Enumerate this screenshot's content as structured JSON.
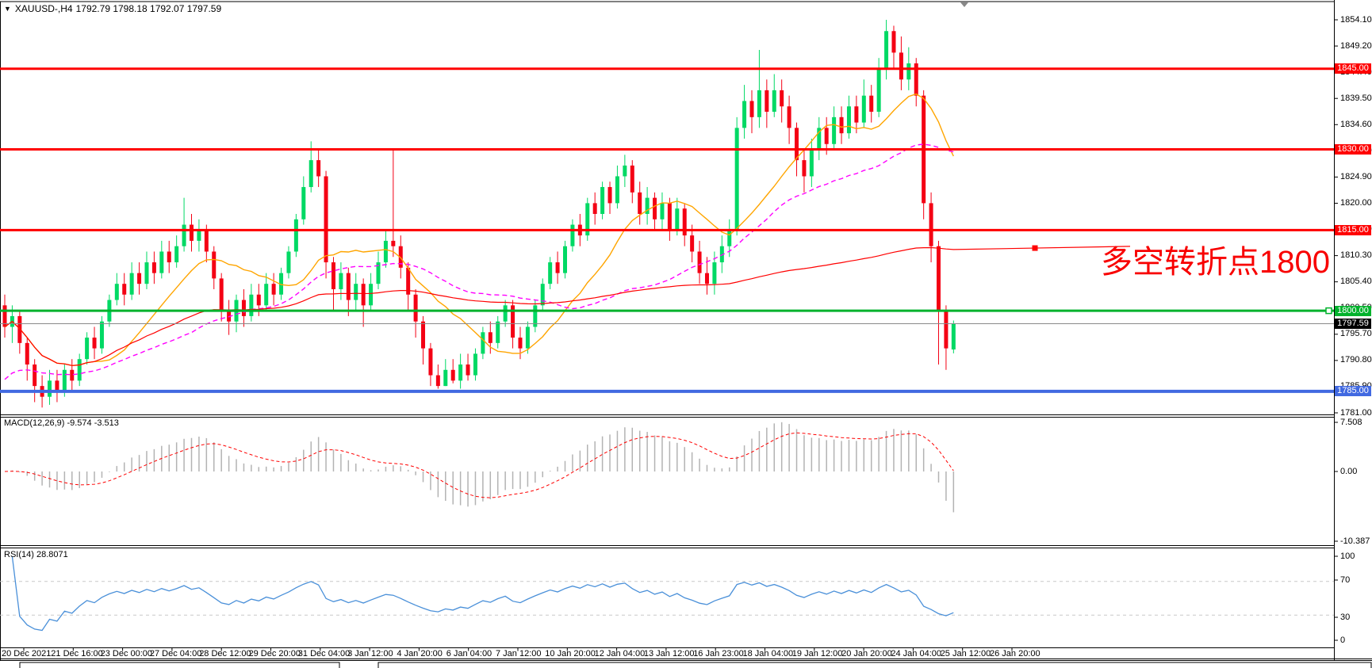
{
  "title": {
    "dropdown_icon": "▼",
    "symbol": "XAUUSD-,H4",
    "ohlc": "1792.79 1798.18 1792.07 1797.59"
  },
  "colors": {
    "bull": "#00d964",
    "bear": "#f40014",
    "resistance_line": "#ff0000",
    "pivot_line": "#00b22c",
    "support_line": "#4169e1",
    "current_price_line": "#8a8a8a",
    "ma_fast": "#ffa500",
    "ma_medium": "#ff00ff",
    "ma_slow": "#ff0000",
    "macd_histogram": "#b3b3b3",
    "macd_signal": "#ff0000",
    "rsi_line": "#4a90d9",
    "rsi_levels": "#c8c8c8",
    "annotation": "#f80000",
    "badge_text": "#ffffff",
    "current_badge_bg": "#000000"
  },
  "annotation": {
    "text": "多空转折点1800",
    "color": "#f80000"
  },
  "chart_data": [
    {
      "type": "candlestick",
      "title": "XAUUSD-,H4",
      "ohlc_header": {
        "open": "1792.79",
        "high": "1798.18",
        "low": "1792.07",
        "close": "1797.59"
      },
      "ylim": [
        1780.6,
        1857.5
      ],
      "y_ticks": [
        "1854.10",
        "1849.20",
        "1844.40",
        "1839.50",
        "1834.60",
        "1829.70",
        "1824.90",
        "1820.00",
        "1815.10",
        "1810.30",
        "1805.40",
        "1800.50",
        "1795.70",
        "1790.80",
        "1785.90",
        "1781.00"
      ],
      "x_labels": [
        "20 Dec 2021",
        "21 Dec 16:00",
        "23 Dec 00:00",
        "27 Dec 04:00",
        "28 Dec 12:00",
        "29 Dec 20:00",
        "31 Dec 04:00",
        "3 Jan 12:00",
        "4 Jan 20:00",
        "6 Jan 04:00",
        "7 Jan 12:00",
        "10 Jan 20:00",
        "12 Jan 04:00",
        "13 Jan 12:00",
        "16 Jan 23:00",
        "18 Jan 04:00",
        "19 Jan 12:00",
        "20 Jan 20:00",
        "24 Jan 04:00",
        "25 Jan 12:00",
        "26 Jan 20:00"
      ],
      "h_lines": [
        {
          "price": 1845.0,
          "label": "1845.00",
          "color": "#ff0000",
          "width": 3
        },
        {
          "price": 1830.0,
          "label": "1830.00",
          "color": "#ff0000",
          "width": 3
        },
        {
          "price": 1815.0,
          "label": "1815.00",
          "color": "#ff0000",
          "width": 3
        },
        {
          "price": 1800.0,
          "label": "1800.00",
          "color": "#00b22c",
          "width": 3,
          "handle": true
        },
        {
          "price": 1785.0,
          "label": "1785.00",
          "color": "#4169e1",
          "width": 4
        }
      ],
      "current_price": {
        "value": 1797.59,
        "label": "1797.59"
      },
      "moving_averages": [
        {
          "name": "fast",
          "period": 13,
          "color": "#ffa500",
          "style": "solid"
        },
        {
          "name": "medium",
          "period": 34,
          "color": "#ff00ff",
          "style": "dashed"
        },
        {
          "name": "slow",
          "period": 999,
          "color": "#ff0000",
          "style": "solid",
          "extends_right": true
        }
      ],
      "candles": [
        [
          1801,
          1803,
          1795,
          1797
        ],
        [
          1797,
          1801,
          1794,
          1799
        ],
        [
          1799,
          1800,
          1792,
          1794
        ],
        [
          1794,
          1795,
          1787,
          1790
        ],
        [
          1790,
          1791,
          1783,
          1786
        ],
        [
          1786,
          1788,
          1782,
          1784
        ],
        [
          1784,
          1789,
          1782.5,
          1787
        ],
        [
          1787,
          1789,
          1783,
          1785
        ],
        [
          1785,
          1790,
          1784,
          1789
        ],
        [
          1789,
          1791,
          1785,
          1787
        ],
        [
          1787,
          1792,
          1786,
          1791
        ],
        [
          1791,
          1796,
          1790,
          1795
        ],
        [
          1795,
          1797,
          1791,
          1793
        ],
        [
          1793,
          1799,
          1792,
          1798
        ],
        [
          1798,
          1803,
          1797,
          1802
        ],
        [
          1802,
          1807,
          1801,
          1805
        ],
        [
          1805,
          1807,
          1801,
          1803
        ],
        [
          1803,
          1809,
          1802,
          1807
        ],
        [
          1807,
          1809,
          1803,
          1805
        ],
        [
          1805,
          1811,
          1804,
          1809
        ],
        [
          1809,
          1811,
          1805,
          1807
        ],
        [
          1807,
          1813,
          1806,
          1811
        ],
        [
          1811,
          1813,
          1807,
          1809
        ],
        [
          1809,
          1814,
          1808,
          1812
        ],
        [
          1812,
          1821,
          1811,
          1816
        ],
        [
          1816,
          1818,
          1811,
          1813
        ],
        [
          1813,
          1817,
          1811,
          1815
        ],
        [
          1815,
          1816,
          1809,
          1811
        ],
        [
          1811,
          1812,
          1804,
          1806
        ],
        [
          1806,
          1807,
          1798,
          1800
        ],
        [
          1800,
          1802,
          1795.5,
          1798
        ],
        [
          1798,
          1803,
          1796,
          1802
        ],
        [
          1802,
          1804,
          1797,
          1799
        ],
        [
          1799,
          1805,
          1798,
          1803
        ],
        [
          1803,
          1805,
          1799,
          1801
        ],
        [
          1801,
          1807,
          1800,
          1805
        ],
        [
          1805,
          1807,
          1801,
          1803
        ],
        [
          1803,
          1808,
          1802,
          1807
        ],
        [
          1807,
          1812,
          1806,
          1811
        ],
        [
          1811,
          1818,
          1810,
          1817
        ],
        [
          1817,
          1825,
          1816,
          1823
        ],
        [
          1823,
          1831.5,
          1822,
          1828
        ],
        [
          1828,
          1830,
          1823,
          1825
        ],
        [
          1825,
          1826,
          1806,
          1809
        ],
        [
          1809,
          1810,
          1800,
          1804
        ],
        [
          1804,
          1809,
          1802,
          1807
        ],
        [
          1807,
          1808,
          1799,
          1802
        ],
        [
          1802,
          1807,
          1800,
          1805
        ],
        [
          1805,
          1806,
          1797,
          1801
        ],
        [
          1801,
          1807,
          1800,
          1805
        ],
        [
          1805,
          1811,
          1804,
          1809
        ],
        [
          1809,
          1815,
          1808,
          1813
        ],
        [
          1813,
          1830,
          1810,
          1812
        ],
        [
          1812,
          1814,
          1806,
          1808
        ],
        [
          1808,
          1809,
          1800,
          1803
        ],
        [
          1803,
          1804,
          1795,
          1798
        ],
        [
          1798,
          1799,
          1790,
          1793
        ],
        [
          1793,
          1794,
          1786,
          1788
        ],
        [
          1788,
          1790,
          1785.5,
          1786
        ],
        [
          1786,
          1791,
          1786,
          1789
        ],
        [
          1789,
          1791,
          1786.5,
          1787
        ],
        [
          1787,
          1792,
          1785.5,
          1790
        ],
        [
          1790,
          1792,
          1787,
          1788
        ],
        [
          1788,
          1793,
          1787,
          1792
        ],
        [
          1792,
          1797,
          1791,
          1796
        ],
        [
          1796,
          1798,
          1792,
          1794
        ],
        [
          1794,
          1799,
          1793,
          1798
        ],
        [
          1798,
          1802,
          1797,
          1801
        ],
        [
          1801,
          1802,
          1793,
          1795
        ],
        [
          1795,
          1797,
          1791,
          1793
        ],
        [
          1793,
          1798,
          1792,
          1797
        ],
        [
          1797,
          1802,
          1796,
          1801
        ],
        [
          1801,
          1806,
          1800,
          1805
        ],
        [
          1805,
          1810,
          1804,
          1809
        ],
        [
          1809,
          1811,
          1805,
          1807
        ],
        [
          1807,
          1813,
          1806,
          1812
        ],
        [
          1812,
          1817,
          1811,
          1816
        ],
        [
          1816,
          1818,
          1812,
          1814
        ],
        [
          1814,
          1821,
          1813,
          1820
        ],
        [
          1820,
          1822,
          1816,
          1818
        ],
        [
          1818,
          1824,
          1817,
          1823
        ],
        [
          1823,
          1824,
          1818,
          1820
        ],
        [
          1820,
          1827,
          1819,
          1825
        ],
        [
          1825,
          1829,
          1823,
          1827
        ],
        [
          1827,
          1828,
          1820,
          1822
        ],
        [
          1822,
          1824,
          1816,
          1818
        ],
        [
          1818,
          1823,
          1816,
          1821
        ],
        [
          1821,
          1822,
          1815,
          1817
        ],
        [
          1817,
          1822,
          1815,
          1820
        ],
        [
          1820,
          1821,
          1813,
          1815
        ],
        [
          1815,
          1821,
          1814,
          1819
        ],
        [
          1819,
          1820,
          1812,
          1814
        ],
        [
          1814,
          1816,
          1809,
          1811
        ],
        [
          1811,
          1813,
          1805,
          1807
        ],
        [
          1807,
          1810,
          1803,
          1805
        ],
        [
          1805,
          1811,
          1803,
          1809
        ],
        [
          1809,
          1814,
          1807,
          1812
        ],
        [
          1812,
          1817,
          1810,
          1815
        ],
        [
          1815,
          1836,
          1814,
          1834
        ],
        [
          1834,
          1842,
          1832,
          1839
        ],
        [
          1839,
          1841,
          1833,
          1836
        ],
        [
          1836,
          1848.5,
          1834,
          1841
        ],
        [
          1841,
          1843,
          1834,
          1837
        ],
        [
          1837,
          1844,
          1836,
          1841
        ],
        [
          1841,
          1843,
          1835,
          1838
        ],
        [
          1838,
          1840,
          1831,
          1834
        ],
        [
          1834,
          1835,
          1825,
          1828
        ],
        [
          1828,
          1830,
          1822,
          1825
        ],
        [
          1825,
          1832,
          1823,
          1830
        ],
        [
          1830,
          1836,
          1828,
          1834
        ],
        [
          1834,
          1836,
          1829,
          1831
        ],
        [
          1831,
          1838,
          1830,
          1836
        ],
        [
          1836,
          1838,
          1831,
          1833
        ],
        [
          1833,
          1840,
          1832,
          1838
        ],
        [
          1838,
          1840,
          1833,
          1835
        ],
        [
          1835,
          1843,
          1834,
          1840
        ],
        [
          1840,
          1842,
          1835,
          1837
        ],
        [
          1837,
          1847,
          1836,
          1845
        ],
        [
          1845,
          1854.1,
          1843,
          1852
        ],
        [
          1852,
          1853,
          1845,
          1848
        ],
        [
          1848,
          1851,
          1841,
          1843
        ],
        [
          1843,
          1849,
          1841,
          1846
        ],
        [
          1846,
          1847,
          1838,
          1840
        ],
        [
          1840,
          1841,
          1817,
          1820
        ],
        [
          1820,
          1822,
          1809,
          1812
        ],
        [
          1812,
          1813,
          1790,
          1800
        ],
        [
          1800,
          1801,
          1789,
          1793
        ],
        [
          1792.79,
          1798.18,
          1792.07,
          1797.59
        ]
      ]
    },
    {
      "type": "bar",
      "name": "MACD",
      "label": "MACD(12,26,9) -9.574 -3.513",
      "params": [
        12,
        26,
        9
      ],
      "current_values": [
        -9.574,
        -3.513
      ],
      "y_ticks": [
        "7.508",
        "0.00",
        "-10.387"
      ],
      "ylim": [
        -10.387,
        7.508
      ]
    },
    {
      "type": "line",
      "name": "RSI",
      "label": "RSI(14) 28.8071",
      "period": 14,
      "current_value": 28.8071,
      "y_ticks": [
        "100",
        "70",
        "30",
        "0"
      ],
      "levels": [
        70,
        30
      ],
      "ylim": [
        0,
        100
      ]
    }
  ]
}
